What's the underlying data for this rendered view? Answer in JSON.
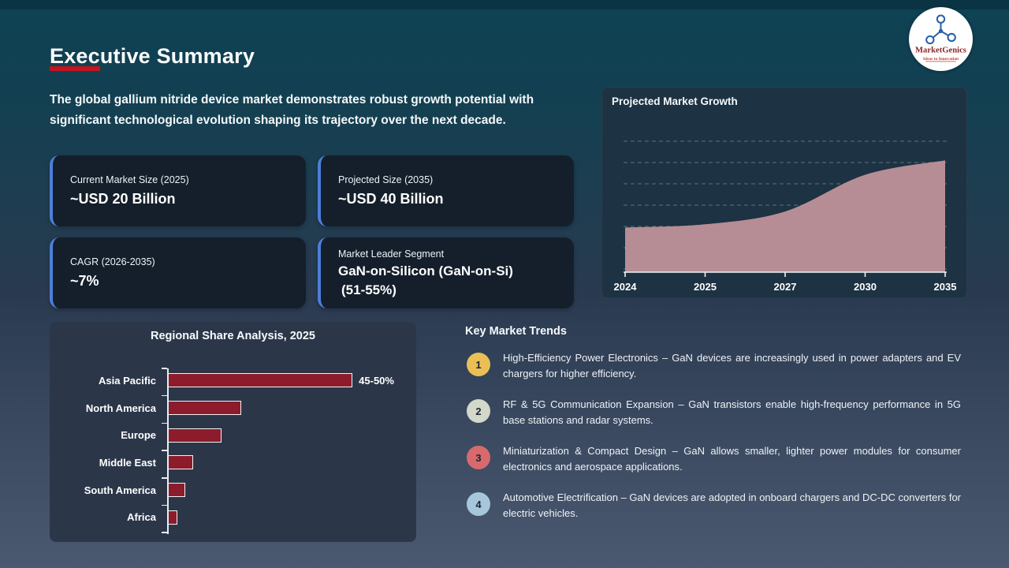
{
  "slide": {
    "title": "Executive Summary",
    "intro_lines": [
      "The global gallium nitride device market demonstrates robust growth potential with",
      "significant technological evolution shaping its trajectory over the next decade."
    ]
  },
  "logo": {
    "name": "MarketGenics",
    "tagline": "Ideas to Innovation",
    "icon": "molecule-network-icon"
  },
  "stat_cards": [
    {
      "label": "Current Market Size (2025)",
      "value": "~USD 20 Billion"
    },
    {
      "label": "Projected Size (2035)",
      "value": "~USD 40 Billion"
    },
    {
      "label": "CAGR (2026-2035)",
      "value": "~7%"
    },
    {
      "label": "Market Leader Segment",
      "value": "GaN-on-Silicon (GaN-on-Si)",
      "value_line2": "(51-55%)"
    }
  ],
  "chart_data": [
    {
      "type": "area",
      "title": "Projected Market Growth",
      "x": [
        "2024",
        "2025",
        "2027",
        "2030",
        "2035"
      ],
      "values": [
        19,
        20,
        24,
        35.5,
        40
      ],
      "xlabel": "",
      "ylabel": "",
      "ylim": [
        5,
        46
      ],
      "gridlines": 7,
      "grid_style": "dashed",
      "legend": "none",
      "area_color": "#c0939a"
    },
    {
      "type": "bar",
      "title": "Regional Share Analysis, 2025",
      "orientation": "horizontal",
      "categories": [
        "Asia Pacific",
        "North America",
        "Europe",
        "Middle East",
        "South America",
        "Africa"
      ],
      "values": [
        47.5,
        19,
        14,
        6.7,
        4.7,
        2.6
      ],
      "data_labels": [
        "45-50%",
        "",
        "",
        "",
        "",
        ""
      ],
      "xlim": [
        0,
        61
      ],
      "grid": "off",
      "bar_color": "#8c1c2c"
    }
  ],
  "trends": {
    "heading": "Key Market Trends",
    "items": [
      {
        "num": "1",
        "color": "#eabf55",
        "text": "High-Efficiency Power Electronics – GaN devices are increasingly used in power adapters and EV chargers for higher efficiency."
      },
      {
        "num": "2",
        "color": "#d2d8ca",
        "text": "RF & 5G Communication Expansion – GaN transistors enable high-frequency performance in 5G base stations and radar systems."
      },
      {
        "num": "3",
        "color": "#d76a6d",
        "text": "Miniaturization & Compact Design – GaN allows smaller, lighter power modules for consumer electronics and aerospace applications."
      },
      {
        "num": "4",
        "color": "#a6c6dc",
        "text": "Automotive Electrification – GaN devices are adopted in onboard chargers and DC-DC converters for electric vehicles."
      }
    ]
  },
  "colors": {
    "accent_red": "#c41420",
    "card_accent_blue": "#4d7fd8",
    "bar_maroon": "#8c1c2c",
    "area_pink": "#c0939a",
    "panel_dark": "#1d3242",
    "panel_mid": "#2b3749",
    "card_bg": "#141f2b",
    "logo_text_red": "#8c2423",
    "logo_icon_blue": "#2a5fa8"
  }
}
